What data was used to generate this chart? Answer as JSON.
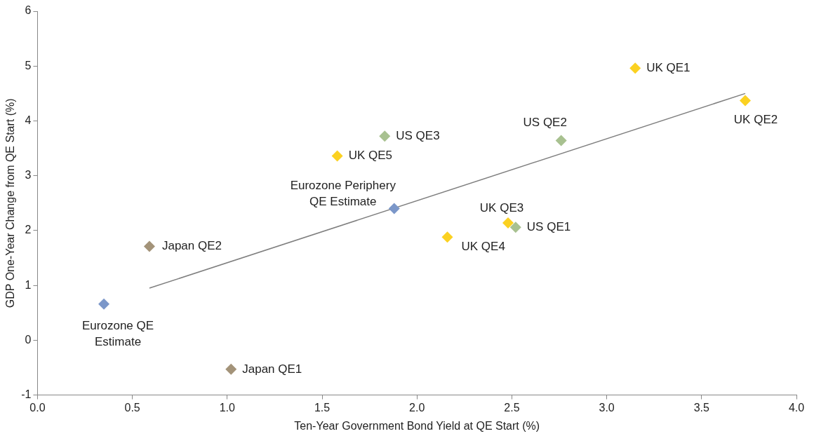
{
  "chart_data": {
    "type": "scatter",
    "xlabel": "Ten-Year Government Bond Yield at QE Start (%)",
    "ylabel": "GDP One-Year Change from QE Start (%)",
    "xlim": [
      0,
      4
    ],
    "xticks": [
      {
        "value": 0,
        "label": "0.0"
      },
      {
        "value": 0.5,
        "label": "0.5"
      },
      {
        "value": 1,
        "label": "1.0"
      },
      {
        "value": 1.5,
        "label": "1.5"
      },
      {
        "value": 2,
        "label": "2.0"
      },
      {
        "value": 2.5,
        "label": "2.5"
      },
      {
        "value": 3,
        "label": "3.0"
      },
      {
        "value": 3.5,
        "label": "3.5"
      },
      {
        "value": 4,
        "label": "4.0"
      }
    ],
    "ylim": [
      -1,
      6
    ],
    "yticks": [
      -1,
      0,
      1,
      2,
      3,
      4,
      5,
      6
    ],
    "grid": false,
    "legend": false,
    "marker": "diamond",
    "series": [
      {
        "color": "#fbd121",
        "x": [
          3.15,
          3.73,
          1.58,
          2.48,
          2.16
        ],
        "values": [
          4.96,
          4.37,
          3.36,
          2.14,
          1.88
        ]
      },
      {
        "color": "#a8c190",
        "x": [
          2.76,
          1.83,
          2.52
        ],
        "values": [
          3.64,
          3.72,
          2.06
        ]
      },
      {
        "color": "#7b97c9",
        "x": [
          1.88,
          0.35
        ],
        "values": [
          2.4,
          0.66
        ]
      },
      {
        "color": "#a39379",
        "x": [
          0.59,
          1.02
        ],
        "values": [
          1.71,
          -0.53
        ]
      },
      {
        "type": "line",
        "color": "#7f7f7f",
        "marker": "none",
        "x": [
          0.59,
          3.73
        ],
        "values": [
          0.95,
          4.5
        ]
      }
    ],
    "annotations": [
      {
        "text": "UK QE1",
        "x": 3.15,
        "y": 4.96
      },
      {
        "text": "UK QE2",
        "x": 3.73,
        "y": 4.37
      },
      {
        "text": "UK QE5",
        "x": 1.58,
        "y": 3.36
      },
      {
        "text": "UK QE3",
        "x": 2.48,
        "y": 2.14
      },
      {
        "text": "UK QE4",
        "x": 2.16,
        "y": 1.88
      },
      {
        "text": "US QE2",
        "x": 2.76,
        "y": 3.64
      },
      {
        "text": "US QE3",
        "x": 1.83,
        "y": 3.72
      },
      {
        "text": "US QE1",
        "x": 2.52,
        "y": 2.06
      },
      {
        "text": "Eurozone Periphery\nQE Estimate",
        "x": 1.88,
        "y": 2.4
      },
      {
        "text": "Eurozone QE\nEstimate",
        "x": 0.35,
        "y": 0.66
      },
      {
        "text": "Japan QE2",
        "x": 0.59,
        "y": 1.71
      },
      {
        "text": "Japan QE1",
        "x": 1.02,
        "y": -0.53
      }
    ]
  }
}
